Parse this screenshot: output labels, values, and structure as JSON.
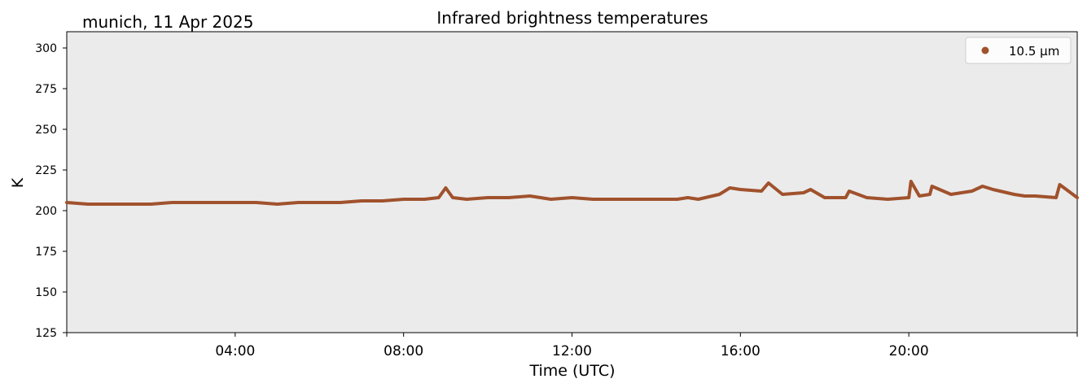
{
  "chart_data": {
    "type": "line",
    "title": "Infrared brightness temperatures",
    "subtitle": "munich, 11 Apr 2025",
    "xlabel": "Time (UTC)",
    "ylabel": "K",
    "xlim": [
      "00:00",
      "24:00"
    ],
    "ylim": [
      125,
      310
    ],
    "x_ticks": [
      "04:00",
      "08:00",
      "12:00",
      "16:00",
      "20:00"
    ],
    "y_ticks": [
      125,
      150,
      175,
      200,
      225,
      250,
      275,
      300
    ],
    "grid": false,
    "legend_position": "top-right",
    "background_color": "#ebebeb",
    "series": [
      {
        "name": "10.5 µm",
        "color": "#a0522d",
        "x": [
          "00:00",
          "00:30",
          "01:00",
          "01:30",
          "02:00",
          "02:30",
          "03:00",
          "03:30",
          "04:00",
          "04:30",
          "05:00",
          "05:30",
          "06:00",
          "06:30",
          "07:00",
          "07:30",
          "08:00",
          "08:30",
          "08:50",
          "09:00",
          "09:10",
          "09:30",
          "10:00",
          "10:30",
          "11:00",
          "11:30",
          "12:00",
          "12:30",
          "13:00",
          "13:30",
          "14:00",
          "14:30",
          "14:45",
          "15:00",
          "15:30",
          "15:45",
          "16:00",
          "16:30",
          "16:40",
          "17:00",
          "17:30",
          "17:40",
          "18:00",
          "18:30",
          "18:35",
          "19:00",
          "19:30",
          "20:00",
          "20:03",
          "20:15",
          "20:30",
          "20:33",
          "21:00",
          "21:30",
          "21:45",
          "22:00",
          "22:30",
          "22:45",
          "23:00",
          "23:30",
          "23:35",
          "24:00"
        ],
        "y": [
          205,
          204,
          204,
          204,
          204,
          205,
          205,
          205,
          205,
          205,
          204,
          205,
          205,
          205,
          206,
          206,
          207,
          207,
          208,
          214,
          208,
          207,
          208,
          208,
          209,
          207,
          208,
          207,
          207,
          207,
          207,
          207,
          208,
          207,
          210,
          214,
          213,
          212,
          217,
          210,
          211,
          213,
          208,
          208,
          212,
          208,
          207,
          208,
          218,
          209,
          210,
          215,
          210,
          212,
          215,
          213,
          210,
          209,
          209,
          208,
          216,
          208
        ]
      }
    ]
  }
}
